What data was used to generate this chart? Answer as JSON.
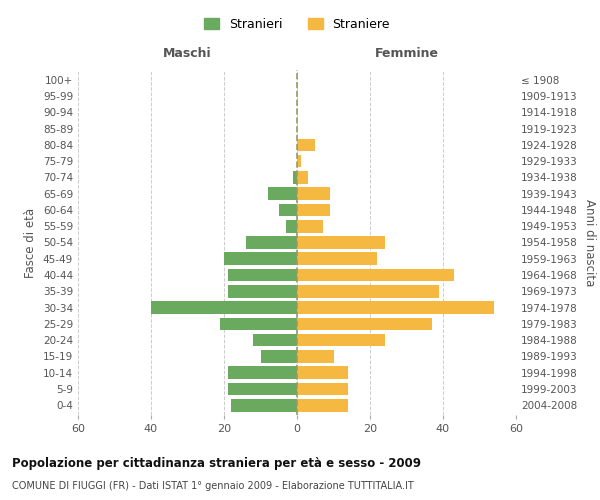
{
  "age_groups": [
    "0-4",
    "5-9",
    "10-14",
    "15-19",
    "20-24",
    "25-29",
    "30-34",
    "35-39",
    "40-44",
    "45-49",
    "50-54",
    "55-59",
    "60-64",
    "65-69",
    "70-74",
    "75-79",
    "80-84",
    "85-89",
    "90-94",
    "95-99",
    "100+"
  ],
  "birth_years": [
    "2004-2008",
    "1999-2003",
    "1994-1998",
    "1989-1993",
    "1984-1988",
    "1979-1983",
    "1974-1978",
    "1969-1973",
    "1964-1968",
    "1959-1963",
    "1954-1958",
    "1949-1953",
    "1944-1948",
    "1939-1943",
    "1934-1938",
    "1929-1933",
    "1924-1928",
    "1919-1923",
    "1914-1918",
    "1909-1913",
    "≤ 1908"
  ],
  "males": [
    18,
    19,
    19,
    10,
    12,
    21,
    40,
    19,
    19,
    20,
    14,
    3,
    5,
    8,
    1,
    0,
    0,
    0,
    0,
    0,
    0
  ],
  "females": [
    14,
    14,
    14,
    10,
    24,
    37,
    54,
    39,
    43,
    22,
    24,
    7,
    9,
    9,
    3,
    1,
    5,
    0,
    0,
    0,
    0
  ],
  "male_color": "#6aaa5e",
  "female_color": "#f5b942",
  "title": "Popolazione per cittadinanza straniera per età e sesso - 2009",
  "subtitle": "COMUNE DI FIUGGI (FR) - Dati ISTAT 1° gennaio 2009 - Elaborazione TUTTITALIA.IT",
  "xlabel_left": "Maschi",
  "xlabel_right": "Femmine",
  "ylabel_left": "Fasce di età",
  "ylabel_right": "Anni di nascita",
  "xlim": 60,
  "legend_stranieri": "Stranieri",
  "legend_straniere": "Straniere",
  "background_color": "#ffffff",
  "grid_color": "#cccccc",
  "dashed_line_color": "#999966"
}
